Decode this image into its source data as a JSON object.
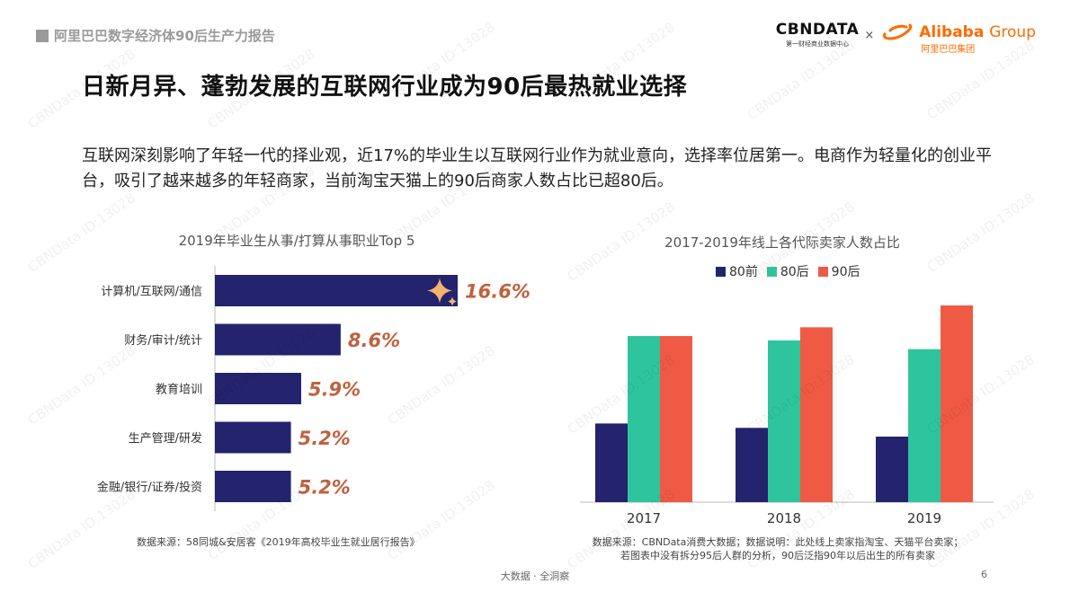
{
  "header": {
    "report_title": "阿里巴巴数字经济体90后生产力报告",
    "cbn_logo": "CBNDATA",
    "cbn_subtitle": "第一财经商业数据中心",
    "times_sign": "×",
    "alibaba_logo_main": "Alibaba",
    "alibaba_logo_group": "Group",
    "alibaba_cn": "阿里巴巴集团"
  },
  "headline": "日新月异、蓬勃发展的互联网行业成为90后最热就业选择",
  "intro": "互联网深刻影响了年轻一代的择业观，近17%的毕业生以互联网行业作为就业意向，选择率位居第一。电商作为轻量化的创业平台，吸引了越来越多的年轻商家，当前淘宝天猫上的90后商家人数占比已超80后。",
  "watermark": "CBNData ID:13028",
  "colors": {
    "navy": "#24236e",
    "teal": "#2ec59e",
    "red": "#ef5a44",
    "label_orange": "#c0613f",
    "star": "#f2b36b"
  },
  "chart_data": [
    {
      "type": "bar",
      "orientation": "horizontal",
      "title": "2019年毕业生从事/打算从事职业Top 5",
      "categories": [
        "计算机/互联网/通信",
        "财务/审计/统计",
        "教育培训",
        "生产管理/研发",
        "金融/银行/证券/投资"
      ],
      "values": [
        16.6,
        8.6,
        5.9,
        5.2,
        5.2
      ],
      "value_labels": [
        "16.6%",
        "8.6%",
        "5.9%",
        "5.2%",
        "5.2%"
      ],
      "unit": "%",
      "xlim": [
        0,
        16.6
      ],
      "grid": false,
      "source": "数据来源：58同城&安居客《2019年高校毕业生就业居行报告》"
    },
    {
      "type": "bar",
      "orientation": "vertical",
      "title": "2017-2019年线上各代际卖家人数占比",
      "categories": [
        "2017",
        "2018",
        "2019"
      ],
      "series": [
        {
          "name": "80前",
          "values": [
            9,
            8.5,
            7.5
          ]
        },
        {
          "name": "80后",
          "values": [
            19,
            18.5,
            17.5
          ]
        },
        {
          "name": "90后",
          "values": [
            19,
            20,
            22.5
          ]
        }
      ],
      "ylim": [
        0,
        25
      ],
      "grid": false,
      "legend": "top-center",
      "source_line1": "数据来源：CBNData消费大数据；数据说明：此处线上卖家指淘宝、天猫平台卖家；",
      "source_line2": "若图表中没有拆分95后人群的分析，90后泛指90年以后出生的所有卖家"
    }
  ],
  "footer": {
    "text": "大数据 · 全洞察",
    "page": "6"
  }
}
